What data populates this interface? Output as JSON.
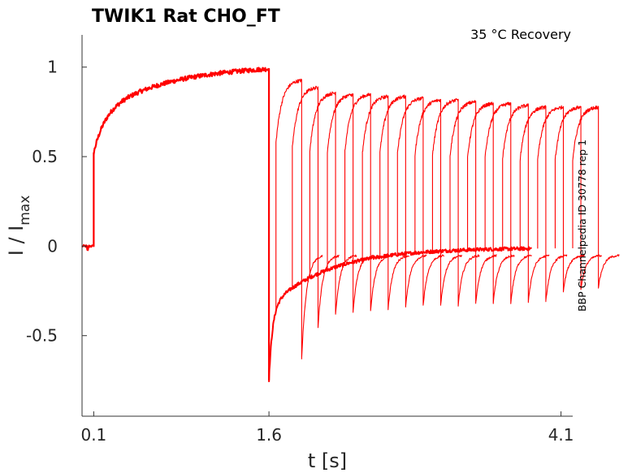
{
  "chart_data": {
    "type": "line",
    "title": "TWIK1  Rat  CHO_FT",
    "annotation": "35 °C  Recovery",
    "side_label": "BBP Channelpedia ID 30778 rep 1",
    "xlabel": "t [s]",
    "ylabel": {
      "main": "I / I",
      "sub": "max"
    },
    "xlim": [
      0.0,
      4.2
    ],
    "ylim": [
      -0.95,
      1.18
    ],
    "xticks": [
      {
        "value": 0.1,
        "label": "0.1"
      },
      {
        "value": 1.6,
        "label": "1.6"
      },
      {
        "value": 4.1,
        "label": "4.1"
      }
    ],
    "yticks": [
      {
        "value": 1,
        "label": "1"
      },
      {
        "value": 0.5,
        "label": "0.5"
      },
      {
        "value": 0,
        "label": "0"
      },
      {
        "value": -0.5,
        "label": "-0.5"
      }
    ],
    "line_color": "#ff0000",
    "protocol": {
      "baseline": 0.0,
      "step_on": 0.1,
      "step_on_jump": 0.52,
      "prepulse_peak": 0.99,
      "step_off": 1.6,
      "tail_min": -0.75,
      "recovery_level": -0.01,
      "test_pulse_intervals": [
        0.06,
        0.2,
        0.35,
        0.5,
        0.65,
        0.8,
        0.95,
        1.1,
        1.25,
        1.4,
        1.55,
        1.7,
        1.85,
        2.0,
        2.15,
        2.3,
        2.45,
        2.6
      ],
      "test_pulse_duration": 0.22,
      "test_pulse_peaks": [
        0.93,
        0.89,
        0.86,
        0.85,
        0.85,
        0.84,
        0.84,
        0.83,
        0.82,
        0.82,
        0.81,
        0.8,
        0.8,
        0.79,
        0.78,
        0.78,
        0.78,
        0.78
      ],
      "test_pulse_tails": [
        -0.63,
        -0.45,
        -0.38,
        -0.37,
        -0.36,
        -0.35,
        -0.34,
        -0.33,
        -0.33,
        -0.33,
        -0.32,
        -0.32,
        -0.32,
        -0.31,
        -0.31,
        -0.25,
        -0.24,
        -0.23
      ]
    }
  }
}
